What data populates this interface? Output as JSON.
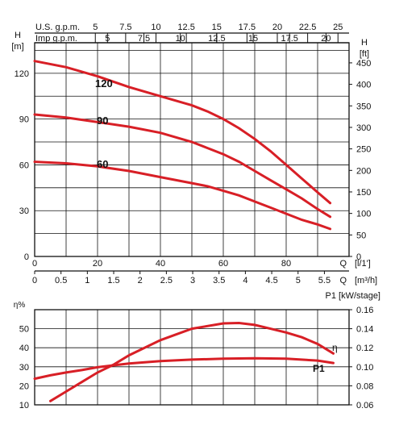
{
  "chart_data": [
    {
      "type": "line",
      "id": "head",
      "top_axes": {
        "us_label": "U.S. g.p.m.",
        "us_ticks": [
          "5",
          "7.5",
          "10",
          "12.5",
          "15",
          "17.5",
          "20",
          "22.5",
          "25"
        ],
        "us_values": [
          5,
          7.5,
          10,
          12.5,
          15,
          17.5,
          20,
          22.5,
          25
        ],
        "imp_label": "Imp g.p.m.",
        "imp_ticks": [
          "5",
          "7.5",
          "10",
          "12.5",
          "15",
          "17.5",
          "20"
        ],
        "imp_values": [
          5,
          7.5,
          10,
          12.5,
          15,
          17.5,
          20
        ]
      },
      "y_left": {
        "label": "H",
        "unit": "[m]",
        "ticks": [
          "0",
          "30",
          "60",
          "90",
          "120"
        ],
        "values": [
          0,
          30,
          60,
          90,
          120
        ],
        "lim": [
          0,
          140
        ]
      },
      "y_right": {
        "label": "H",
        "unit": "[ft]",
        "ticks": [
          "0",
          "50",
          "100",
          "150",
          "200",
          "250",
          "300",
          "350",
          "400",
          "450"
        ],
        "values": [
          0,
          50,
          100,
          150,
          200,
          250,
          300,
          350,
          400,
          450
        ]
      },
      "x_lpm": {
        "label": "Q",
        "unit": "[l/1']",
        "ticks": [
          "0",
          "20",
          "40",
          "60",
          "80"
        ],
        "values": [
          0,
          20,
          40,
          60,
          80
        ],
        "lim": [
          0,
          100
        ]
      },
      "x_m3h": {
        "label": "Q",
        "unit": "[m³/h]",
        "ticks": [
          "0",
          "0.5",
          "1",
          "1.5",
          "2",
          "2.5",
          "3",
          "3.5",
          "4",
          "4.5",
          "5",
          "5.5"
        ],
        "values": [
          0,
          0.5,
          1,
          1.5,
          2,
          2.5,
          3,
          3.5,
          4,
          4.5,
          5,
          5.5
        ]
      },
      "series": [
        {
          "name": "120",
          "x": [
            0,
            10,
            20,
            30,
            40,
            50,
            55,
            60,
            65,
            70,
            75,
            80,
            85,
            90,
            94
          ],
          "y": [
            128,
            124,
            118,
            111,
            105,
            99,
            95,
            90,
            84,
            77,
            69,
            60,
            51,
            42,
            35
          ]
        },
        {
          "name": "90",
          "x": [
            0,
            10,
            20,
            30,
            40,
            50,
            55,
            60,
            65,
            70,
            75,
            80,
            85,
            90,
            94
          ],
          "y": [
            93,
            91,
            88,
            85,
            81,
            75,
            71,
            67,
            62,
            56,
            50,
            44,
            38,
            31,
            26
          ]
        },
        {
          "name": "60",
          "x": [
            0,
            10,
            20,
            30,
            40,
            50,
            55,
            60,
            65,
            70,
            75,
            80,
            85,
            90,
            94
          ],
          "y": [
            62,
            61,
            59,
            56,
            52,
            48,
            46,
            43,
            40,
            36,
            32,
            28,
            24,
            21,
            18
          ]
        }
      ],
      "color": "#d81f26"
    },
    {
      "type": "line",
      "id": "efficiency",
      "y_left": {
        "label": "η%",
        "ticks": [
          "10",
          "20",
          "30",
          "40",
          "50"
        ],
        "values": [
          10,
          20,
          30,
          40,
          50
        ],
        "lim": [
          10,
          60
        ]
      },
      "y_right": {
        "label": "P1 [kW/stage]",
        "ticks": [
          "0.06",
          "0.08",
          "0.10",
          "0.12",
          "0.14",
          "0.16"
        ],
        "values": [
          0.06,
          0.08,
          0.1,
          0.12,
          0.14,
          0.16
        ],
        "lim": [
          0.06,
          0.16
        ]
      },
      "series": [
        {
          "name": "η",
          "axis": "left",
          "x": [
            5,
            10,
            15,
            20,
            25,
            30,
            40,
            50,
            60,
            65,
            70,
            75,
            80,
            85,
            90,
            95
          ],
          "y": [
            12,
            17,
            22,
            27,
            31,
            36,
            44,
            50,
            52.8,
            53,
            52,
            50,
            48,
            45.5,
            42,
            37
          ]
        },
        {
          "name": "P1",
          "axis": "right",
          "x": [
            0,
            5,
            10,
            15,
            20,
            25,
            30,
            40,
            50,
            60,
            70,
            80,
            90,
            95
          ],
          "y": [
            0.0875,
            0.091,
            0.094,
            0.0965,
            0.0995,
            0.1015,
            0.1035,
            0.106,
            0.1075,
            0.1085,
            0.109,
            0.1085,
            0.1065,
            0.104
          ]
        }
      ],
      "color": "#d81f26"
    }
  ]
}
